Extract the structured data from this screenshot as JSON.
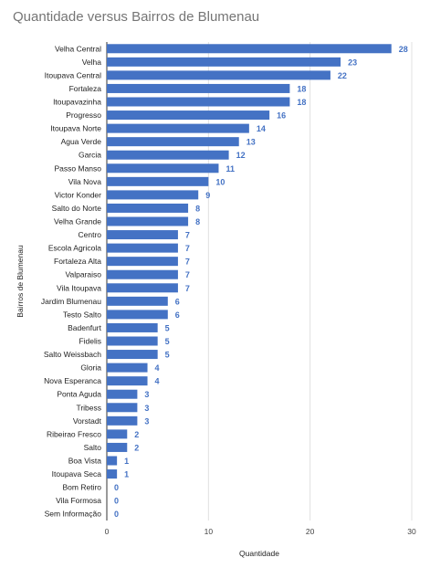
{
  "chart_data": {
    "type": "bar",
    "orientation": "horizontal",
    "title": "Quantidade versus Bairros de Blumenau",
    "xlabel": "Quantidade",
    "ylabel": "Bairros de Blumenau",
    "xlim": [
      0,
      30
    ],
    "xticks": [
      "0",
      "10",
      "20",
      "30"
    ],
    "grid": true,
    "legend": "none",
    "bar_color": "#4472C4",
    "label_color": "#4472C4",
    "categories": [
      "Velha Central",
      "Velha",
      "Itoupava Central",
      "Fortaleza",
      "Itoupavazinha",
      "Progresso",
      "Itoupava Norte",
      "Agua Verde",
      "Garcia",
      "Passo Manso",
      "Vila Nova",
      "Victor Konder",
      "Salto do Norte",
      "Velha Grande",
      "Centro",
      "Escola Agricola",
      "Fortaleza Alta",
      "Valparaiso",
      "Vila Itoupava",
      "Jardim Blumenau",
      "Testo Salto",
      "Badenfurt",
      "Fidelis",
      "Salto Weissbach",
      "Gloria",
      "Nova Esperanca",
      "Ponta Aguda",
      "Tribess",
      "Vorstadt",
      "Ribeirao Fresco",
      "Salto",
      "Boa Vista",
      "Itoupava Seca",
      "Bom Retiro",
      "Vila Formosa",
      "Sem Informação"
    ],
    "values": [
      28,
      23,
      22,
      18,
      18,
      16,
      14,
      13,
      12,
      11,
      10,
      9,
      8,
      8,
      7,
      7,
      7,
      7,
      7,
      6,
      6,
      5,
      5,
      5,
      4,
      4,
      3,
      3,
      3,
      2,
      2,
      1,
      1,
      0,
      0,
      0
    ]
  }
}
